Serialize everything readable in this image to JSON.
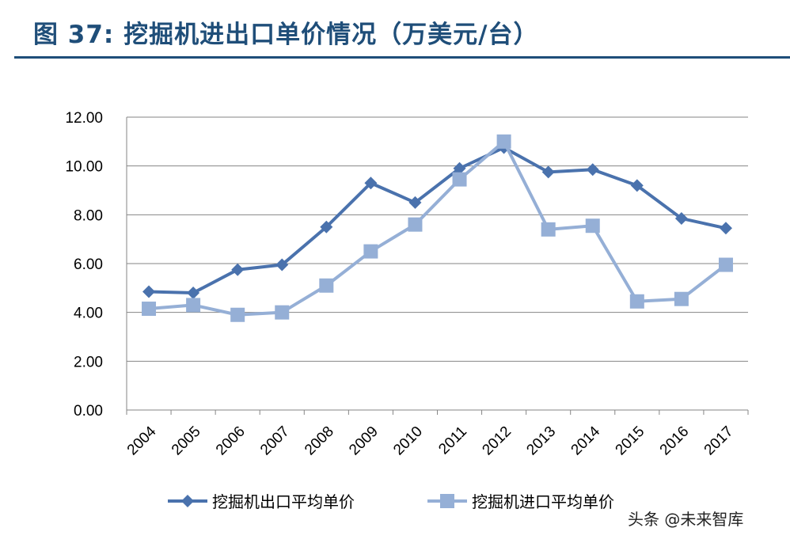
{
  "header": {
    "title": "图 37: 挖掘机进出口单价情况（万美元/台）"
  },
  "watermark": {
    "text": "头条 @未来智库"
  },
  "colors": {
    "title": "#1f4e79",
    "series_1": "#4a72ad",
    "series_2": "#95afd6",
    "gridline": "#868686"
  },
  "chart_data": {
    "type": "line",
    "title": "",
    "xlabel": "",
    "ylabel": "",
    "ylim": [
      0,
      12
    ],
    "yticks": [
      "0.00",
      "2.00",
      "4.00",
      "6.00",
      "8.00",
      "10.00",
      "12.00"
    ],
    "x": [
      "2004",
      "2005",
      "2006",
      "2007",
      "2008",
      "2009",
      "2010",
      "2011",
      "2012",
      "2013",
      "2014",
      "2015",
      "2016",
      "2017"
    ],
    "grid": true,
    "legend_position": "bottom",
    "series": [
      {
        "name": "挖掘机出口平均单价",
        "marker": "diamond",
        "values": [
          4.85,
          4.8,
          5.75,
          5.95,
          7.5,
          9.3,
          8.5,
          9.9,
          10.75,
          9.75,
          9.85,
          9.2,
          7.85,
          7.45
        ]
      },
      {
        "name": "挖掘机进口平均单价",
        "marker": "square",
        "values": [
          4.15,
          4.3,
          3.9,
          4.0,
          5.1,
          6.5,
          7.6,
          9.45,
          11.0,
          7.4,
          7.55,
          4.45,
          4.55,
          5.95
        ]
      }
    ]
  }
}
